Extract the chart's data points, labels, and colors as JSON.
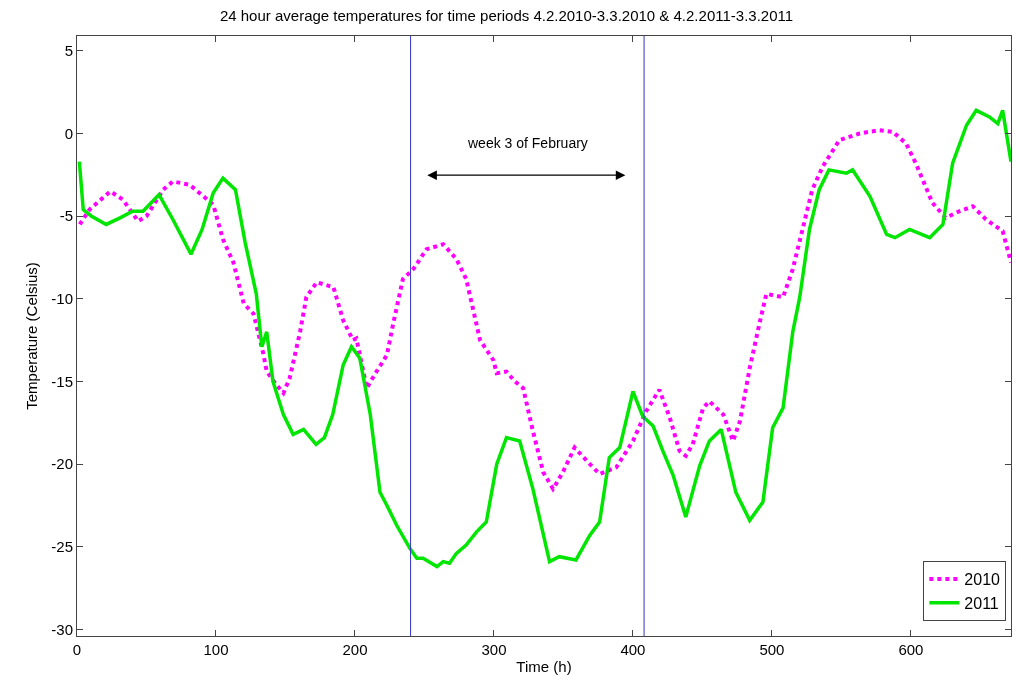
{
  "chart_data": {
    "type": "line",
    "title": "24 hour average temperatures for time periods 4.2.2010-3.3.2010 & 4.2.2011-3.3.2011",
    "xlabel": "Time (h)",
    "ylabel": "Temperature (Celsius)",
    "xlim": [
      0,
      672
    ],
    "ylim": [
      -30.4,
      5.9
    ],
    "xticks": [
      0,
      100,
      200,
      300,
      400,
      500,
      600
    ],
    "yticks": [
      -30,
      -25,
      -20,
      -15,
      -10,
      -5,
      0,
      5
    ],
    "legend": "bottom right",
    "ref_lines": [
      {
        "axis": "x",
        "value": 240,
        "color": "#3333cc"
      },
      {
        "axis": "x",
        "value": 408,
        "color": "#3333cc"
      }
    ],
    "annotations": [
      "week 3 of February"
    ],
    "series": [
      {
        "name": "2010",
        "color": "#ff00ff",
        "line_style": "dotted",
        "x": [
          2,
          9,
          24,
          33,
          44,
          50,
          62,
          69,
          81,
          91,
          98,
          105,
          112.5,
          120,
          127,
          134,
          136.5,
          143.5,
          148.5,
          153,
          160.5,
          165,
          172.5,
          184.5,
          191.5,
          198.5,
          201,
          208.5,
          215.5,
          223,
          227.5,
          234.5,
          242,
          251.5,
          263.5,
          273,
          280,
          290,
          299.5,
          302,
          309,
          315,
          321,
          328,
          335.5,
          342.5,
          349.5,
          358,
          369,
          376,
          388,
          400,
          409.5,
          419,
          426.5,
          433.5,
          438,
          443,
          450.5,
          455,
          465,
          472,
          477,
          484,
          491,
          496,
          508,
          515,
          522,
          529,
          536.5,
          548.5,
          563,
          577,
          587,
          596.5,
          603.5,
          615.5,
          625,
          635,
          644.5,
          654,
          666,
          672
        ],
        "values": [
          -5.5,
          -4.6,
          -3.5,
          -4,
          -5.3,
          -5,
          -3.4,
          -2.9,
          -3.1,
          -3.8,
          -4.3,
          -6.4,
          -7.8,
          -10.3,
          -10.9,
          -13.3,
          -14.4,
          -15.2,
          -15.7,
          -14.8,
          -12,
          -9.9,
          -9,
          -9.3,
          -11.3,
          -12.5,
          -12.4,
          -15.4,
          -14.4,
          -13.4,
          -11.5,
          -8.8,
          -8.2,
          -7,
          -6.7,
          -7.6,
          -8.8,
          -12.5,
          -13.7,
          -14.5,
          -14.4,
          -15,
          -15.4,
          -18,
          -20.5,
          -21.5,
          -20.5,
          -19,
          -20,
          -20.6,
          -20.2,
          -18.6,
          -16.8,
          -15.5,
          -17.2,
          -19.2,
          -19.5,
          -18.8,
          -16.6,
          -16.2,
          -17,
          -18.6,
          -17.4,
          -14.2,
          -11.5,
          -9.7,
          -9.9,
          -8.2,
          -5.8,
          -3.4,
          -2,
          -0.4,
          0,
          0.2,
          0.1,
          -0.6,
          -1.8,
          -4.2,
          -5.1,
          -4.7,
          -4.4,
          -5.2,
          -5.9,
          -7.8
        ]
      },
      {
        "name": "2011",
        "color": "#00e600",
        "line_style": "solid",
        "x": [
          1.7,
          4.5,
          10.5,
          21,
          31,
          40,
          47.5,
          59,
          69,
          82,
          90,
          98,
          105,
          114,
          121,
          129,
          133,
          136.5,
          141,
          148.5,
          155.5,
          163,
          172,
          178,
          184,
          191.5,
          197.5,
          203.5,
          211,
          218,
          223,
          230,
          239.5,
          244.5,
          249,
          259,
          263.5,
          268,
          273,
          280,
          287.5,
          294.5,
          302,
          309,
          318.5,
          328,
          340,
          347,
          359,
          369,
          376,
          383,
          390.5,
          400,
          407,
          414.5,
          421.5,
          429,
          438,
          448,
          455,
          463.5,
          474,
          484,
          493.5,
          500.5,
          508,
          515,
          520,
          527,
          534,
          541,
          553.5,
          558,
          570.5,
          582.5,
          588.5,
          599,
          613.5,
          623,
          630,
          640,
          647,
          656.5,
          662.5,
          666,
          672
        ],
        "values": [
          -1.7,
          -4.6,
          -5,
          -5.5,
          -5.1,
          -4.7,
          -4.7,
          -3.7,
          -5.2,
          -7.3,
          -5.8,
          -3.6,
          -2.7,
          -3.4,
          -6.6,
          -9.7,
          -12.9,
          -12,
          -15,
          -17,
          -18.2,
          -17.9,
          -18.8,
          -18.4,
          -17,
          -14,
          -12.9,
          -13.6,
          -17,
          -21.7,
          -22.5,
          -23.7,
          -25.1,
          -25.7,
          -25.7,
          -26.2,
          -25.9,
          -26,
          -25.4,
          -24.9,
          -24.1,
          -23.5,
          -20,
          -18.4,
          -18.6,
          -21.5,
          -25.9,
          -25.6,
          -25.8,
          -24.3,
          -23.5,
          -19.6,
          -19,
          -15.6,
          -17.1,
          -17.7,
          -19.2,
          -20.7,
          -23.2,
          -20.1,
          -18.6,
          -17.9,
          -21.7,
          -23.4,
          -22.3,
          -17.8,
          -16.6,
          -12,
          -9.9,
          -5.8,
          -3.4,
          -2.2,
          -2.4,
          -2.2,
          -3.8,
          -6.1,
          -6.3,
          -5.8,
          -6.3,
          -5.5,
          -1.8,
          0.5,
          1.4,
          1,
          0.6,
          1.4,
          -1.7
        ]
      }
    ]
  }
}
